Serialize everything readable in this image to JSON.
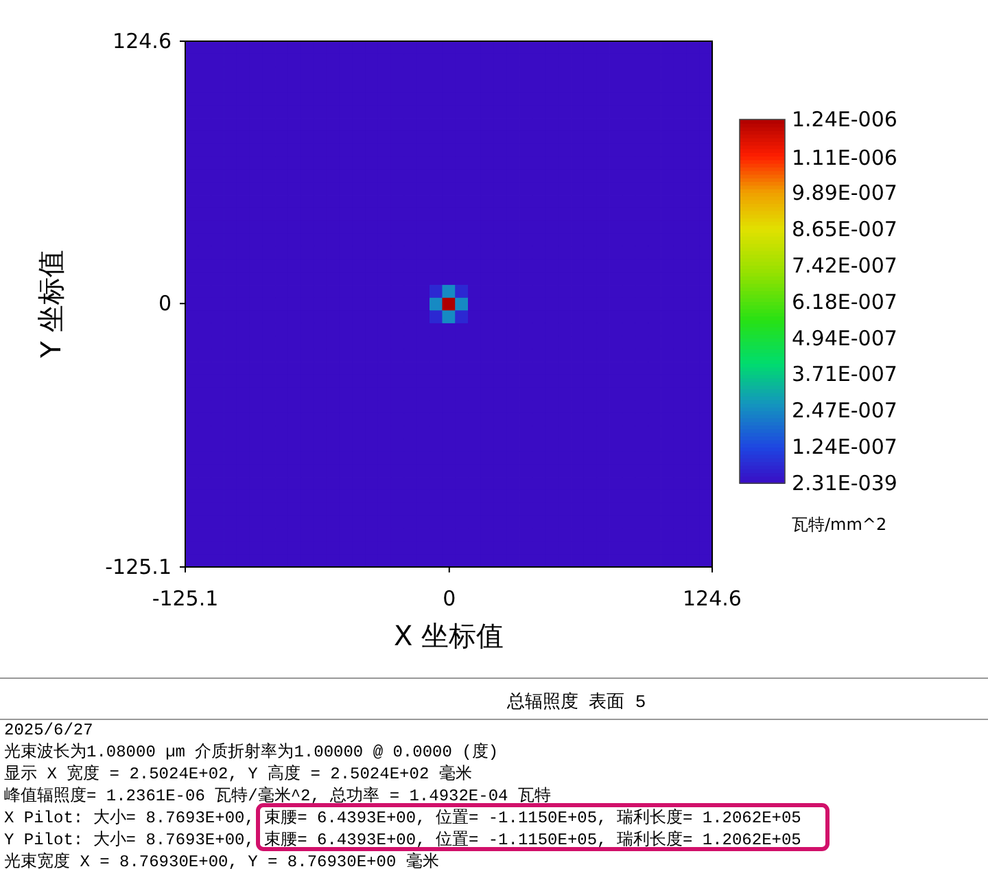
{
  "chart_data": {
    "type": "heatmap",
    "title": "总辐照度 表面 5",
    "xlabel": "X 坐标值",
    "ylabel": "Y 坐标值",
    "clabel": "瓦特/mm^2",
    "xlim": [
      -125.1,
      124.6
    ],
    "ylim": [
      -125.1,
      124.6
    ],
    "xticks": [
      -125.1,
      0,
      124.6
    ],
    "yticks": [
      -125.1,
      0,
      124.6
    ],
    "clim": [
      0,
      1.24e-06
    ],
    "cticks": [
      {
        "value": 2.31e-39,
        "label": "2.31E-039"
      },
      {
        "value": 1.24e-07,
        "label": "1.24E-007"
      },
      {
        "value": 2.47e-07,
        "label": "2.47E-007"
      },
      {
        "value": 3.71e-07,
        "label": "3.71E-007"
      },
      {
        "value": 4.94e-07,
        "label": "4.94E-007"
      },
      {
        "value": 6.18e-07,
        "label": "6.18E-007"
      },
      {
        "value": 7.42e-07,
        "label": "7.42E-007"
      },
      {
        "value": 8.65e-07,
        "label": "8.65E-007"
      },
      {
        "value": 9.89e-07,
        "label": "9.89E-007"
      },
      {
        "value": 1.11e-06,
        "label": "1.11E-006"
      },
      {
        "value": 1.24e-06,
        "label": "1.24E-006"
      }
    ],
    "annotations": [
      "2025/6/27",
      "光束波长为1.08000 µm  介质折射率为1.00000 @ 0.0000 (度)",
      "显示 X 宽度 = 2.5024E+02, Y 高度 = 2.5024E+02 毫米",
      "峰值辐照度= 1.2361E-06 瓦特/毫米^2, 总功率 = 1.4932E-04 瓦特",
      "X Pilot: 大小= 8.7693E+00, 束腰= 6.4393E+00, 位置= -1.1150E+05, 瑞利长度= 1.2062E+05",
      "Y Pilot: 大小= 8.7693E+00, 束腰= 6.4393E+00, 位置= -1.1150E+05, 瑞利长度= 1.2062E+05",
      "光束宽度 X = 8.76930E+00, Y = 8.76930E+00 毫米"
    ],
    "x": [
      -122.1,
      -116.0,
      -109.9,
      -103.8,
      -97.7,
      -91.6,
      -85.5,
      -79.4,
      -73.3,
      -67.2,
      -61.2,
      -55.1,
      -49.0,
      -42.9,
      -36.8,
      -30.7,
      -24.6,
      -18.5,
      -12.4,
      -6.3,
      -0.3,
      5.8,
      11.9,
      18.0,
      24.1,
      30.2,
      36.3,
      42.4,
      48.5,
      54.6,
      60.7,
      66.7,
      72.8,
      78.9,
      85.0,
      91.1,
      97.2,
      103.3,
      109.4,
      115.5,
      121.6
    ],
    "y": [
      121.6,
      115.5,
      109.4,
      103.3,
      97.2,
      91.1,
      85.0,
      78.9,
      72.8,
      66.7,
      60.7,
      54.6,
      48.5,
      42.4,
      36.3,
      30.2,
      24.1,
      18.0,
      11.9,
      5.8,
      -0.3,
      -6.3,
      -12.4,
      -18.5,
      -24.6,
      -30.7,
      -36.8,
      -42.9,
      -49.0,
      -55.1,
      -61.2,
      -67.2,
      -73.3,
      -79.4,
      -85.5,
      -91.6,
      -97.7,
      -103.8,
      -109.9,
      -116.0,
      -122.1
    ],
    "cells": [
      [
        0,
        0,
        0,
        0,
        0,
        0,
        0,
        0,
        0,
        0,
        0,
        0,
        0,
        0,
        0,
        0,
        0,
        0,
        0,
        0,
        0,
        0,
        0,
        0,
        0,
        0,
        0,
        0,
        0,
        0,
        0,
        0,
        0,
        0,
        0,
        0,
        0,
        0,
        0,
        0,
        0
      ],
      [
        0,
        0,
        0,
        0,
        0,
        0,
        0,
        0,
        0,
        0,
        0,
        0,
        0,
        0,
        0,
        0,
        0,
        0,
        0,
        0,
        0,
        0,
        0,
        0,
        0,
        0,
        0,
        0,
        0,
        0,
        0,
        0,
        0,
        0,
        0,
        0,
        0,
        0,
        0,
        0,
        0
      ],
      [
        0,
        0,
        0,
        0,
        0,
        0,
        0,
        0,
        0,
        0,
        0,
        0,
        0,
        0,
        0,
        0,
        0,
        0,
        0,
        0,
        0,
        0,
        0,
        0,
        0,
        0,
        0,
        0,
        0,
        0,
        0,
        0,
        0,
        0,
        0,
        0,
        0,
        0,
        0,
        0,
        0
      ],
      [
        0,
        0,
        0,
        0,
        0,
        0,
        0,
        0,
        0,
        0,
        0,
        0,
        0,
        0,
        0,
        0,
        0,
        0,
        0,
        0,
        0,
        0,
        0,
        0,
        0,
        0,
        0,
        0,
        0,
        0,
        0,
        0,
        0,
        0,
        0,
        0,
        0,
        0,
        0,
        0,
        0
      ],
      [
        0,
        0,
        0,
        0,
        0,
        0,
        0,
        0,
        0,
        0,
        0,
        0,
        0,
        0,
        0,
        0,
        0,
        0,
        0,
        0,
        0,
        0,
        0,
        0,
        0,
        0,
        0,
        0,
        0,
        0,
        0,
        0,
        0,
        0,
        0,
        0,
        0,
        0,
        0,
        0,
        0
      ],
      [
        0,
        0,
        0,
        0,
        0,
        0,
        0,
        0,
        0,
        0,
        0,
        0,
        0,
        0,
        0,
        0,
        0,
        0,
        0,
        0,
        0,
        0,
        0,
        0,
        0,
        0,
        0,
        0,
        0,
        0,
        0,
        0,
        0,
        0,
        0,
        0,
        0,
        0,
        0,
        0,
        0
      ],
      [
        0,
        0,
        0,
        0,
        0,
        0,
        0,
        0,
        0,
        0,
        0,
        0,
        0,
        0,
        0,
        0,
        0,
        0,
        0,
        0,
        0,
        0,
        0,
        0,
        0,
        0,
        0,
        0,
        0,
        0,
        0,
        0,
        0,
        0,
        0,
        0,
        0,
        0,
        0,
        0,
        0
      ],
      [
        0,
        0,
        0,
        0,
        0,
        0,
        0,
        0,
        0,
        0,
        0,
        0,
        0,
        0,
        0,
        0,
        0,
        0,
        0,
        0,
        0,
        0,
        0,
        0,
        0,
        0,
        0,
        0,
        0,
        0,
        0,
        0,
        0,
        0,
        0,
        0,
        0,
        0,
        0,
        0,
        0
      ],
      [
        0,
        0,
        0,
        0,
        0,
        0,
        0,
        0,
        0,
        0,
        0,
        0,
        0,
        0,
        0,
        0,
        0,
        0,
        0,
        0,
        0,
        0,
        0,
        0,
        0,
        0,
        0,
        0,
        0,
        0,
        0,
        0,
        0,
        0,
        0,
        0,
        0,
        0,
        0,
        0,
        0
      ],
      [
        0,
        0,
        0,
        0,
        0,
        0,
        0,
        0,
        0,
        0,
        0,
        0,
        0,
        0,
        0,
        0,
        0,
        0,
        0,
        0,
        0,
        0,
        0,
        0,
        0,
        0,
        0,
        0,
        0,
        0,
        0,
        0,
        0,
        0,
        0,
        0,
        0,
        0,
        0,
        0,
        0
      ],
      [
        0,
        0,
        0,
        0,
        0,
        0,
        0,
        0,
        0,
        0,
        0,
        0,
        0,
        0,
        0,
        0,
        0,
        0,
        0,
        0,
        0,
        0,
        0,
        0,
        0,
        0,
        0,
        0,
        0,
        0,
        0,
        0,
        0,
        0,
        0,
        0,
        0,
        0,
        0,
        0,
        0
      ],
      [
        0,
        0,
        0,
        0,
        0,
        0,
        0,
        0,
        0,
        0,
        0,
        0,
        0,
        0,
        0,
        0,
        0,
        0,
        0,
        0,
        0,
        0,
        0,
        0,
        0,
        0,
        0,
        0,
        0,
        0,
        0,
        0,
        0,
        0,
        0,
        0,
        0,
        0,
        0,
        0,
        0
      ],
      [
        0,
        0,
        0,
        0,
        0,
        0,
        0,
        0,
        0,
        0,
        0,
        0,
        0,
        0,
        0,
        0,
        0,
        0,
        0,
        0,
        0,
        0,
        0,
        0,
        0,
        0,
        0,
        0,
        0,
        0,
        0,
        0,
        0,
        0,
        0,
        0,
        0,
        0,
        0,
        0,
        0
      ],
      [
        0,
        0,
        0,
        0,
        0,
        0,
        0,
        0,
        0,
        0,
        0,
        0,
        0,
        0,
        0,
        0,
        0,
        0,
        0,
        0,
        0,
        0,
        0,
        0,
        0,
        0,
        0,
        0,
        0,
        0,
        0,
        0,
        0,
        0,
        0,
        0,
        0,
        0,
        0,
        0,
        0
      ],
      [
        0,
        0,
        0,
        0,
        0,
        0,
        0,
        0,
        0,
        0,
        0,
        0,
        0,
        0,
        0,
        0,
        0,
        0,
        0,
        0,
        0,
        0,
        0,
        0,
        0,
        0,
        0,
        0,
        0,
        0,
        0,
        0,
        0,
        0,
        0,
        0,
        0,
        0,
        0,
        0,
        0
      ],
      [
        0,
        0,
        0,
        0,
        0,
        0,
        0,
        0,
        0,
        0,
        0,
        0,
        0,
        0,
        0,
        0,
        0,
        0,
        0,
        0,
        0,
        0,
        0,
        0,
        0,
        0,
        0,
        0,
        0,
        0,
        0,
        0,
        0,
        0,
        0,
        0,
        0,
        0,
        0,
        0,
        0
      ],
      [
        0,
        0,
        0,
        0,
        0,
        0,
        0,
        0,
        0,
        0,
        0,
        0,
        0,
        0,
        0,
        0,
        0,
        0,
        0,
        0,
        0,
        0,
        0,
        0,
        0,
        0,
        0,
        0,
        0,
        0,
        0,
        0,
        0,
        0,
        0,
        0,
        0,
        0,
        0,
        0,
        0
      ],
      [
        0,
        0,
        0,
        0,
        0,
        0,
        0,
        0,
        0,
        0,
        0,
        0,
        0,
        0,
        0,
        0,
        0,
        0,
        0,
        0,
        0,
        0,
        0,
        0,
        0,
        0,
        0,
        0,
        0,
        0,
        0,
        0,
        0,
        0,
        0,
        0,
        0,
        0,
        0,
        0,
        0
      ],
      [
        0,
        0,
        0,
        0,
        0,
        0,
        0,
        0,
        0,
        0,
        0,
        0,
        0,
        0,
        0,
        0,
        0,
        0,
        0,
        0,
        0,
        0,
        0,
        0,
        0,
        0,
        0,
        0,
        0,
        0,
        0,
        0,
        0,
        0,
        0,
        0,
        0,
        0,
        0,
        0,
        0
      ],
      [
        0,
        0,
        0,
        0,
        0,
        0,
        0,
        0,
        0,
        0,
        0,
        0,
        0,
        0,
        0,
        0,
        0,
        0,
        0,
        6e-08,
        2.5e-07,
        6e-08,
        0,
        0,
        0,
        0,
        0,
        0,
        0,
        0,
        0,
        0,
        0,
        0,
        0,
        0,
        0,
        0,
        0,
        0,
        0
      ],
      [
        0,
        0,
        0,
        0,
        0,
        0,
        0,
        0,
        0,
        0,
        0,
        0,
        0,
        0,
        0,
        0,
        0,
        0,
        0,
        2.5e-07,
        1.24e-06,
        2.5e-07,
        0,
        0,
        0,
        0,
        0,
        0,
        0,
        0,
        0,
        0,
        0,
        0,
        0,
        0,
        0,
        0,
        0,
        0,
        0
      ],
      [
        0,
        0,
        0,
        0,
        0,
        0,
        0,
        0,
        0,
        0,
        0,
        0,
        0,
        0,
        0,
        0,
        0,
        0,
        0,
        6e-08,
        2.5e-07,
        6e-08,
        0,
        0,
        0,
        0,
        0,
        0,
        0,
        0,
        0,
        0,
        0,
        0,
        0,
        0,
        0,
        0,
        0,
        0,
        0
      ],
      [
        0,
        0,
        0,
        0,
        0,
        0,
        0,
        0,
        0,
        0,
        0,
        0,
        0,
        0,
        0,
        0,
        0,
        0,
        0,
        0,
        0,
        0,
        0,
        0,
        0,
        0,
        0,
        0,
        0,
        0,
        0,
        0,
        0,
        0,
        0,
        0,
        0,
        0,
        0,
        0,
        0
      ],
      [
        0,
        0,
        0,
        0,
        0,
        0,
        0,
        0,
        0,
        0,
        0,
        0,
        0,
        0,
        0,
        0,
        0,
        0,
        0,
        0,
        0,
        0,
        0,
        0,
        0,
        0,
        0,
        0,
        0,
        0,
        0,
        0,
        0,
        0,
        0,
        0,
        0,
        0,
        0,
        0,
        0
      ],
      [
        0,
        0,
        0,
        0,
        0,
        0,
        0,
        0,
        0,
        0,
        0,
        0,
        0,
        0,
        0,
        0,
        0,
        0,
        0,
        0,
        0,
        0,
        0,
        0,
        0,
        0,
        0,
        0,
        0,
        0,
        0,
        0,
        0,
        0,
        0,
        0,
        0,
        0,
        0,
        0,
        0
      ],
      [
        0,
        0,
        0,
        0,
        0,
        0,
        0,
        0,
        0,
        0,
        0,
        0,
        0,
        0,
        0,
        0,
        0,
        0,
        0,
        0,
        0,
        0,
        0,
        0,
        0,
        0,
        0,
        0,
        0,
        0,
        0,
        0,
        0,
        0,
        0,
        0,
        0,
        0,
        0,
        0,
        0
      ],
      [
        0,
        0,
        0,
        0,
        0,
        0,
        0,
        0,
        0,
        0,
        0,
        0,
        0,
        0,
        0,
        0,
        0,
        0,
        0,
        0,
        0,
        0,
        0,
        0,
        0,
        0,
        0,
        0,
        0,
        0,
        0,
        0,
        0,
        0,
        0,
        0,
        0,
        0,
        0,
        0,
        0
      ],
      [
        0,
        0,
        0,
        0,
        0,
        0,
        0,
        0,
        0,
        0,
        0,
        0,
        0,
        0,
        0,
        0,
        0,
        0,
        0,
        0,
        0,
        0,
        0,
        0,
        0,
        0,
        0,
        0,
        0,
        0,
        0,
        0,
        0,
        0,
        0,
        0,
        0,
        0,
        0,
        0,
        0
      ],
      [
        0,
        0,
        0,
        0,
        0,
        0,
        0,
        0,
        0,
        0,
        0,
        0,
        0,
        0,
        0,
        0,
        0,
        0,
        0,
        0,
        0,
        0,
        0,
        0,
        0,
        0,
        0,
        0,
        0,
        0,
        0,
        0,
        0,
        0,
        0,
        0,
        0,
        0,
        0,
        0,
        0
      ],
      [
        0,
        0,
        0,
        0,
        0,
        0,
        0,
        0,
        0,
        0,
        0,
        0,
        0,
        0,
        0,
        0,
        0,
        0,
        0,
        0,
        0,
        0,
        0,
        0,
        0,
        0,
        0,
        0,
        0,
        0,
        0,
        0,
        0,
        0,
        0,
        0,
        0,
        0,
        0,
        0,
        0
      ],
      [
        0,
        0,
        0,
        0,
        0,
        0,
        0,
        0,
        0,
        0,
        0,
        0,
        0,
        0,
        0,
        0,
        0,
        0,
        0,
        0,
        0,
        0,
        0,
        0,
        0,
        0,
        0,
        0,
        0,
        0,
        0,
        0,
        0,
        0,
        0,
        0,
        0,
        0,
        0,
        0,
        0
      ],
      [
        0,
        0,
        0,
        0,
        0,
        0,
        0,
        0,
        0,
        0,
        0,
        0,
        0,
        0,
        0,
        0,
        0,
        0,
        0,
        0,
        0,
        0,
        0,
        0,
        0,
        0,
        0,
        0,
        0,
        0,
        0,
        0,
        0,
        0,
        0,
        0,
        0,
        0,
        0,
        0,
        0
      ],
      [
        0,
        0,
        0,
        0,
        0,
        0,
        0,
        0,
        0,
        0,
        0,
        0,
        0,
        0,
        0,
        0,
        0,
        0,
        0,
        0,
        0,
        0,
        0,
        0,
        0,
        0,
        0,
        0,
        0,
        0,
        0,
        0,
        0,
        0,
        0,
        0,
        0,
        0,
        0,
        0,
        0
      ],
      [
        0,
        0,
        0,
        0,
        0,
        0,
        0,
        0,
        0,
        0,
        0,
        0,
        0,
        0,
        0,
        0,
        0,
        0,
        0,
        0,
        0,
        0,
        0,
        0,
        0,
        0,
        0,
        0,
        0,
        0,
        0,
        0,
        0,
        0,
        0,
        0,
        0,
        0,
        0,
        0,
        0
      ],
      [
        0,
        0,
        0,
        0,
        0,
        0,
        0,
        0,
        0,
        0,
        0,
        0,
        0,
        0,
        0,
        0,
        0,
        0,
        0,
        0,
        0,
        0,
        0,
        0,
        0,
        0,
        0,
        0,
        0,
        0,
        0,
        0,
        0,
        0,
        0,
        0,
        0,
        0,
        0,
        0,
        0
      ],
      [
        0,
        0,
        0,
        0,
        0,
        0,
        0,
        0,
        0,
        0,
        0,
        0,
        0,
        0,
        0,
        0,
        0,
        0,
        0,
        0,
        0,
        0,
        0,
        0,
        0,
        0,
        0,
        0,
        0,
        0,
        0,
        0,
        0,
        0,
        0,
        0,
        0,
        0,
        0,
        0,
        0
      ],
      [
        0,
        0,
        0,
        0,
        0,
        0,
        0,
        0,
        0,
        0,
        0,
        0,
        0,
        0,
        0,
        0,
        0,
        0,
        0,
        0,
        0,
        0,
        0,
        0,
        0,
        0,
        0,
        0,
        0,
        0,
        0,
        0,
        0,
        0,
        0,
        0,
        0,
        0,
        0,
        0,
        0
      ],
      [
        0,
        0,
        0,
        0,
        0,
        0,
        0,
        0,
        0,
        0,
        0,
        0,
        0,
        0,
        0,
        0,
        0,
        0,
        0,
        0,
        0,
        0,
        0,
        0,
        0,
        0,
        0,
        0,
        0,
        0,
        0,
        0,
        0,
        0,
        0,
        0,
        0,
        0,
        0,
        0,
        0
      ],
      [
        0,
        0,
        0,
        0,
        0,
        0,
        0,
        0,
        0,
        0,
        0,
        0,
        0,
        0,
        0,
        0,
        0,
        0,
        0,
        0,
        0,
        0,
        0,
        0,
        0,
        0,
        0,
        0,
        0,
        0,
        0,
        0,
        0,
        0,
        0,
        0,
        0,
        0,
        0,
        0,
        0
      ],
      [
        0,
        0,
        0,
        0,
        0,
        0,
        0,
        0,
        0,
        0,
        0,
        0,
        0,
        0,
        0,
        0,
        0,
        0,
        0,
        0,
        0,
        0,
        0,
        0,
        0,
        0,
        0,
        0,
        0,
        0,
        0,
        0,
        0,
        0,
        0,
        0,
        0,
        0,
        0,
        0,
        0
      ],
      [
        0,
        0,
        0,
        0,
        0,
        0,
        0,
        0,
        0,
        0,
        0,
        0,
        0,
        0,
        0,
        0,
        0,
        0,
        0,
        0,
        0,
        0,
        0,
        0,
        0,
        0,
        0,
        0,
        0,
        0,
        0,
        0,
        0,
        0,
        0,
        0,
        0,
        0,
        0,
        0,
        0
      ]
    ]
  }
}
